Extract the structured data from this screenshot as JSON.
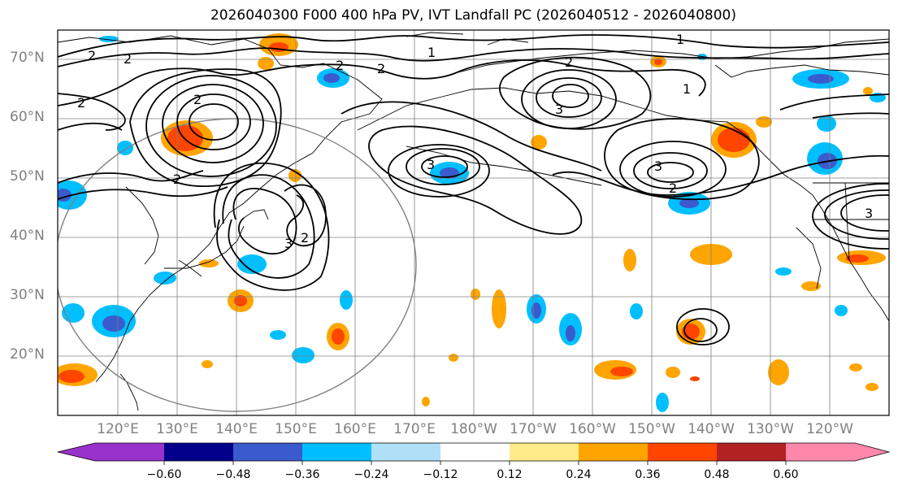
{
  "title": "2026040300 F000 400 hPa PV, IVT Landfall PC (2026040512 - 2026040800)",
  "lat_labels": [
    "70°N",
    "60°N",
    "50°N",
    "40°N",
    "30°N",
    "20°N"
  ],
  "lon_labels": [
    "120°E",
    "130°E",
    "140°E",
    "150°E",
    "160°E",
    "170°E",
    "180°W",
    "170°W",
    "160°W",
    "150°W",
    "140°W",
    "130°W",
    "120°W"
  ],
  "colorbar": {
    "colors": [
      "#9932CC",
      "#00008B",
      "#3A5BCD",
      "#00BFFF",
      "#B0E0F8",
      "#FFFFFF",
      "#FFEB8A",
      "#FFA500",
      "#FF4500",
      "#B22222",
      "#FF88AA"
    ],
    "tick_labels": [
      "−0.60",
      "−0.48",
      "−0.36",
      "−0.24",
      "−0.12",
      "0.12",
      "0.24",
      "0.36",
      "0.48",
      "0.60"
    ]
  },
  "contour_labels": [
    "1",
    "1",
    "1",
    "2",
    "2",
    "2",
    "2",
    "2",
    "2",
    "2",
    "3",
    "3",
    "3",
    "3",
    "3",
    "2",
    "2",
    "2"
  ],
  "colors": {
    "frame": "#000000",
    "grid": "#808080",
    "circle": "#808080",
    "coast": "#000000"
  }
}
